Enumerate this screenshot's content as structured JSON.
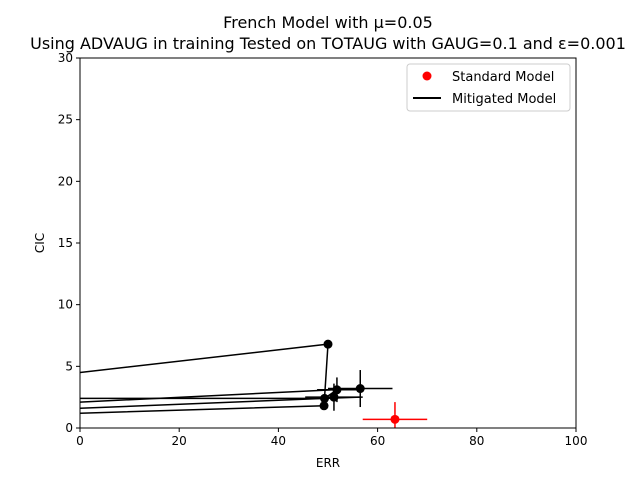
{
  "chart_data": {
    "type": "scatter",
    "title_line1": "French Model with μ=0.05",
    "title_line2": "Using ADVAUG in training Tested on TOTAUG with GAUG=0.1 and ε=0.001",
    "xlabel": "ERR",
    "ylabel": "CIC",
    "xlim": [
      0,
      100
    ],
    "ylim": [
      0,
      30
    ],
    "xticks": [
      0,
      20,
      40,
      60,
      80,
      100
    ],
    "yticks": [
      0,
      5,
      10,
      15,
      20,
      25,
      30
    ],
    "legend_position": "upper-right",
    "grid": false,
    "series": [
      {
        "name": "Standard Model",
        "color": "#ff0000",
        "marker": "circle",
        "points": [
          {
            "x": 63.5,
            "y": 0.7,
            "xerr": 6.5,
            "yerr": 1.4
          }
        ]
      },
      {
        "name": "Mitigated Model",
        "color": "#000000",
        "marker": "circle",
        "points": [
          {
            "x": 50.0,
            "y": 6.8,
            "xerr": 0,
            "yerr": 0
          },
          {
            "x": 49.2,
            "y": 1.8,
            "xerr": 0,
            "yerr": 0
          },
          {
            "x": 49.3,
            "y": 2.4,
            "xerr": 0,
            "yerr": 0
          },
          {
            "x": 51.2,
            "y": 2.5,
            "xerr": 5.8,
            "yerr": 1.1
          },
          {
            "x": 51.8,
            "y": 3.1,
            "xerr": 4.0,
            "yerr": 1.0
          },
          {
            "x": 56.5,
            "y": 3.2,
            "xerr": 6.5,
            "yerr": 1.5
          }
        ],
        "lines": [
          [
            [
              0,
              4.5
            ],
            [
              50.0,
              6.8
            ],
            [
              49.2,
              1.8
            ],
            [
              0,
              1.2
            ]
          ],
          [
            [
              0,
              1.6
            ],
            [
              49.3,
              2.4
            ]
          ],
          [
            [
              0,
              2.1
            ],
            [
              56.5,
              3.2
            ]
          ],
          [
            [
              0,
              2.4
            ],
            [
              49.3,
              2.4
            ],
            [
              56.5,
              2.5
            ]
          ],
          [
            [
              49.3,
              2.4
            ],
            [
              51.8,
              3.1
            ]
          ]
        ]
      }
    ]
  }
}
